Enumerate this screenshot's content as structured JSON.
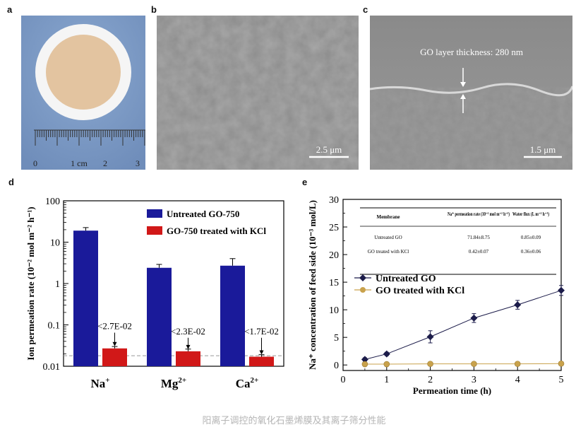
{
  "panel_labels": {
    "a": "a",
    "b": "b",
    "c": "c",
    "d": "d",
    "e": "e"
  },
  "panel_a": {
    "ruler_labels": [
      "0",
      "1 cm",
      "2",
      "3"
    ],
    "colors": {
      "background": "#7f9cc6",
      "ring": "#f4f4f4",
      "membrane": "#e3c4a0"
    }
  },
  "panel_b": {
    "scale_bar": "2.5 μm"
  },
  "panel_c": {
    "annotation": "GO layer thickness: 280 nm",
    "scale_bar": "1.5 μm"
  },
  "caption": "阳离子调控的氧化石墨烯膜及其离子筛分性能",
  "chart_data": [
    {
      "id": "d",
      "type": "bar",
      "scale": "log",
      "ylim": [
        0.01,
        100
      ],
      "yticks": [
        "100",
        "10",
        "1",
        "0.1",
        "0.01"
      ],
      "ylabel": "Ion permeation rate (10⁻² mol m⁻² h⁻¹)",
      "categories": [
        {
          "base": "Na",
          "sup": "+"
        },
        {
          "base": "Mg",
          "sup": "2+"
        },
        {
          "base": "Ca",
          "sup": "2+"
        }
      ],
      "series": [
        {
          "name": "Untreated GO-750",
          "color": "#1a1a9a",
          "values": [
            19,
            2.4,
            2.7
          ],
          "errors": [
            3.5,
            0.5,
            1.3
          ]
        },
        {
          "name": "GO-750 treated with KCl",
          "color": "#d11818",
          "values": [
            0.027,
            0.023,
            0.017
          ],
          "errors": [
            0.003,
            0.003,
            0.002
          ]
        }
      ],
      "annotations": [
        "<2.7E-02",
        "<2.3E-02",
        "<1.7E-02"
      ],
      "reference_line": 0.018,
      "legend_position": "top-right"
    },
    {
      "id": "e",
      "type": "line",
      "xlim": [
        0,
        5
      ],
      "ylim": [
        -1,
        30
      ],
      "xticks": [
        0,
        1,
        2,
        3,
        4,
        5
      ],
      "yticks": [
        0,
        5,
        10,
        15,
        20,
        25,
        30
      ],
      "xlabel": "Permeation time (h)",
      "ylabel": "Na⁺ concentration of feed side (10⁻³ mol/L)",
      "series": [
        {
          "name": "Untreated GO",
          "color": "#1c1c4a",
          "marker": "diamond",
          "x": [
            0.5,
            1,
            2,
            3,
            4,
            5
          ],
          "y": [
            1.0,
            2.0,
            5.1,
            8.5,
            10.9,
            13.5
          ],
          "errors": [
            0.3,
            0.3,
            1.1,
            0.8,
            0.8,
            0.9
          ]
        },
        {
          "name": "GO treated with KCl",
          "color": "#c9a24c",
          "marker": "circle",
          "x": [
            0.5,
            1,
            2,
            3,
            4,
            5
          ],
          "y": [
            0.15,
            0.15,
            0.2,
            0.2,
            0.2,
            0.25
          ],
          "errors": [
            0,
            0,
            0,
            0,
            0,
            0
          ]
        }
      ],
      "legend_position": "center-left",
      "table": {
        "headers": [
          "Membrane",
          "Na⁺ permeation rate (10⁻² mol m⁻² h⁻¹)",
          "Water flux (L m⁻² h⁻¹)"
        ],
        "rows": [
          [
            "Untreated GO",
            "71.84±8.75",
            "0.85±0.09"
          ],
          [
            "GO treated with KCl",
            "0.42±0.07",
            "0.36±0.06"
          ]
        ]
      }
    }
  ]
}
